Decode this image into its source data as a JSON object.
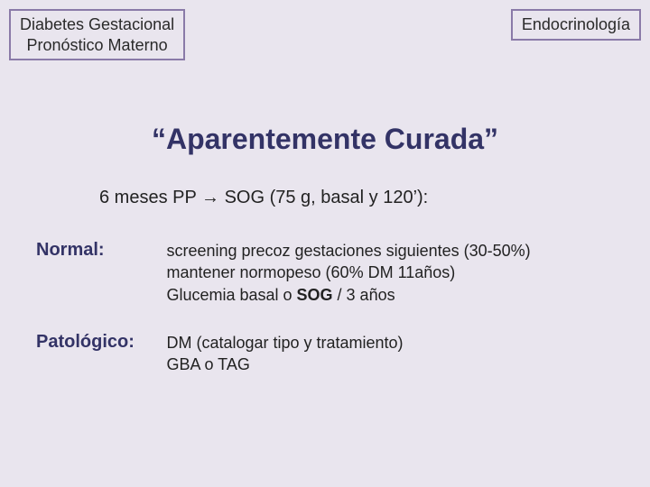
{
  "header": {
    "left_line1": "Diabetes Gestacional",
    "left_line2": "Pronóstico Materno",
    "right": "Endocrinología"
  },
  "title": "“Aparentemente Curada”",
  "subtitle": "6 meses PP → SOG (75 g, basal y 120’):",
  "sections": {
    "normal": {
      "label": "Normal:",
      "line1": "screening precoz gestaciones siguientes (30-50%)",
      "line2": "mantener normopeso (60% DM 11años)",
      "line3a": "Glucemia basal o ",
      "line3b": "SOG",
      "line3c": " / 3 años"
    },
    "patologico": {
      "label": "Patológico:",
      "line1": "DM (catalogar tipo y tratamiento)",
      "line2": "GBA o TAG"
    }
  },
  "colors": {
    "background": "#e9e5ee",
    "border": "#8a7aa8",
    "heading": "#333366",
    "text": "#222222"
  }
}
